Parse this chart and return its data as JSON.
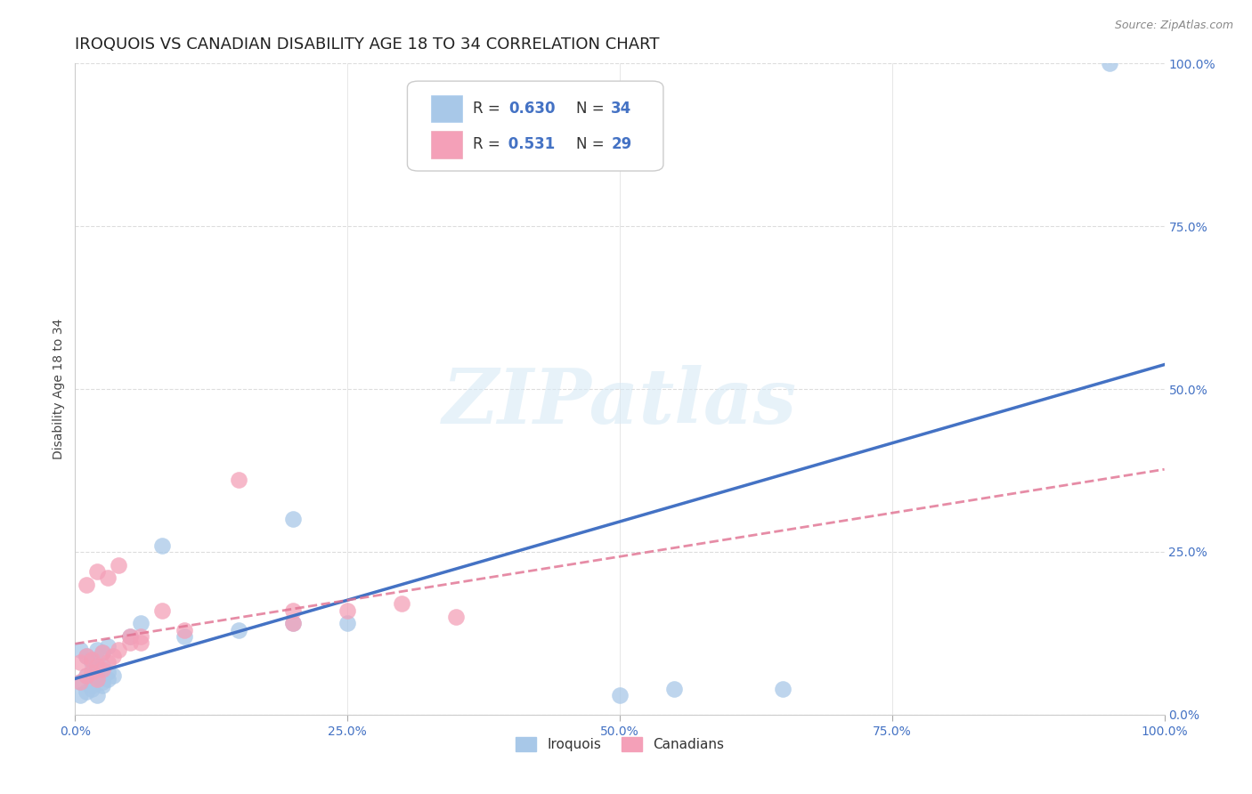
{
  "title": "IROQUOIS VS CANADIAN DISABILITY AGE 18 TO 34 CORRELATION CHART",
  "source": "Source: ZipAtlas.com",
  "ylabel": "Disability Age 18 to 34",
  "legend_iroquois": "Iroquois",
  "legend_canadians": "Canadians",
  "legend_r_iroquois": "R = 0.630",
  "legend_n_iroquois": "N = 34",
  "legend_r_canadians": "R =  0.531",
  "legend_n_canadians": "N = 29",
  "iroquois_color": "#a8c8e8",
  "iroquois_line_color": "#4472c4",
  "canadians_color": "#f4a0b8",
  "canadians_line_color": "#e07090",
  "canadians_line_dash_color": "#c0c0c0",
  "background_color": "#ffffff",
  "watermark": "ZIPatlas",
  "iroquois_x": [
    0.5,
    1.0,
    1.5,
    2.0,
    2.5,
    0.5,
    1.0,
    1.5,
    2.0,
    2.5,
    3.0,
    3.5,
    1.5,
    2.0,
    2.5,
    3.0,
    0.5,
    1.0,
    1.5,
    2.0,
    2.5,
    3.0,
    5.0,
    6.0,
    8.0,
    10.0,
    15.0,
    20.0,
    25.0,
    50.0,
    55.0,
    65.0,
    95.0,
    20.0
  ],
  "iroquois_y": [
    3.0,
    3.5,
    4.0,
    3.0,
    4.5,
    5.0,
    6.0,
    4.5,
    5.5,
    5.0,
    5.5,
    6.0,
    8.0,
    7.0,
    7.5,
    6.5,
    10.0,
    9.0,
    8.5,
    10.0,
    9.5,
    10.5,
    12.0,
    14.0,
    26.0,
    12.0,
    13.0,
    14.0,
    14.0,
    3.0,
    4.0,
    4.0,
    100.0,
    30.0
  ],
  "canadians_x": [
    0.5,
    1.0,
    1.5,
    2.0,
    2.5,
    0.5,
    1.0,
    1.5,
    2.0,
    2.5,
    3.0,
    3.5,
    4.0,
    5.0,
    6.0,
    8.0,
    10.0,
    25.0,
    30.0,
    15.0,
    20.0,
    1.0,
    2.0,
    3.0,
    4.0,
    5.0,
    6.0,
    20.0,
    35.0
  ],
  "canadians_y": [
    5.0,
    6.0,
    6.5,
    5.5,
    7.0,
    8.0,
    9.0,
    8.5,
    7.5,
    9.5,
    8.0,
    9.0,
    10.0,
    12.0,
    11.0,
    16.0,
    13.0,
    16.0,
    17.0,
    36.0,
    16.0,
    20.0,
    22.0,
    21.0,
    23.0,
    11.0,
    12.0,
    14.0,
    15.0
  ],
  "xlim": [
    0,
    100
  ],
  "ylim": [
    0,
    100
  ],
  "xticks": [
    0,
    25,
    50,
    75,
    100
  ],
  "yticks": [
    0,
    25,
    50,
    75,
    100
  ],
  "xtick_labels": [
    "0.0%",
    "25.0%",
    "50.0%",
    "75.0%",
    "100.0%"
  ],
  "ytick_labels": [
    "0.0%",
    "25.0%",
    "50.0%",
    "75.0%",
    "100.0%"
  ],
  "gridline_color": "#dddddd",
  "tick_color": "#4472c4",
  "title_fontsize": 13,
  "axis_label_fontsize": 10,
  "tick_fontsize": 10,
  "legend_fontsize": 12
}
